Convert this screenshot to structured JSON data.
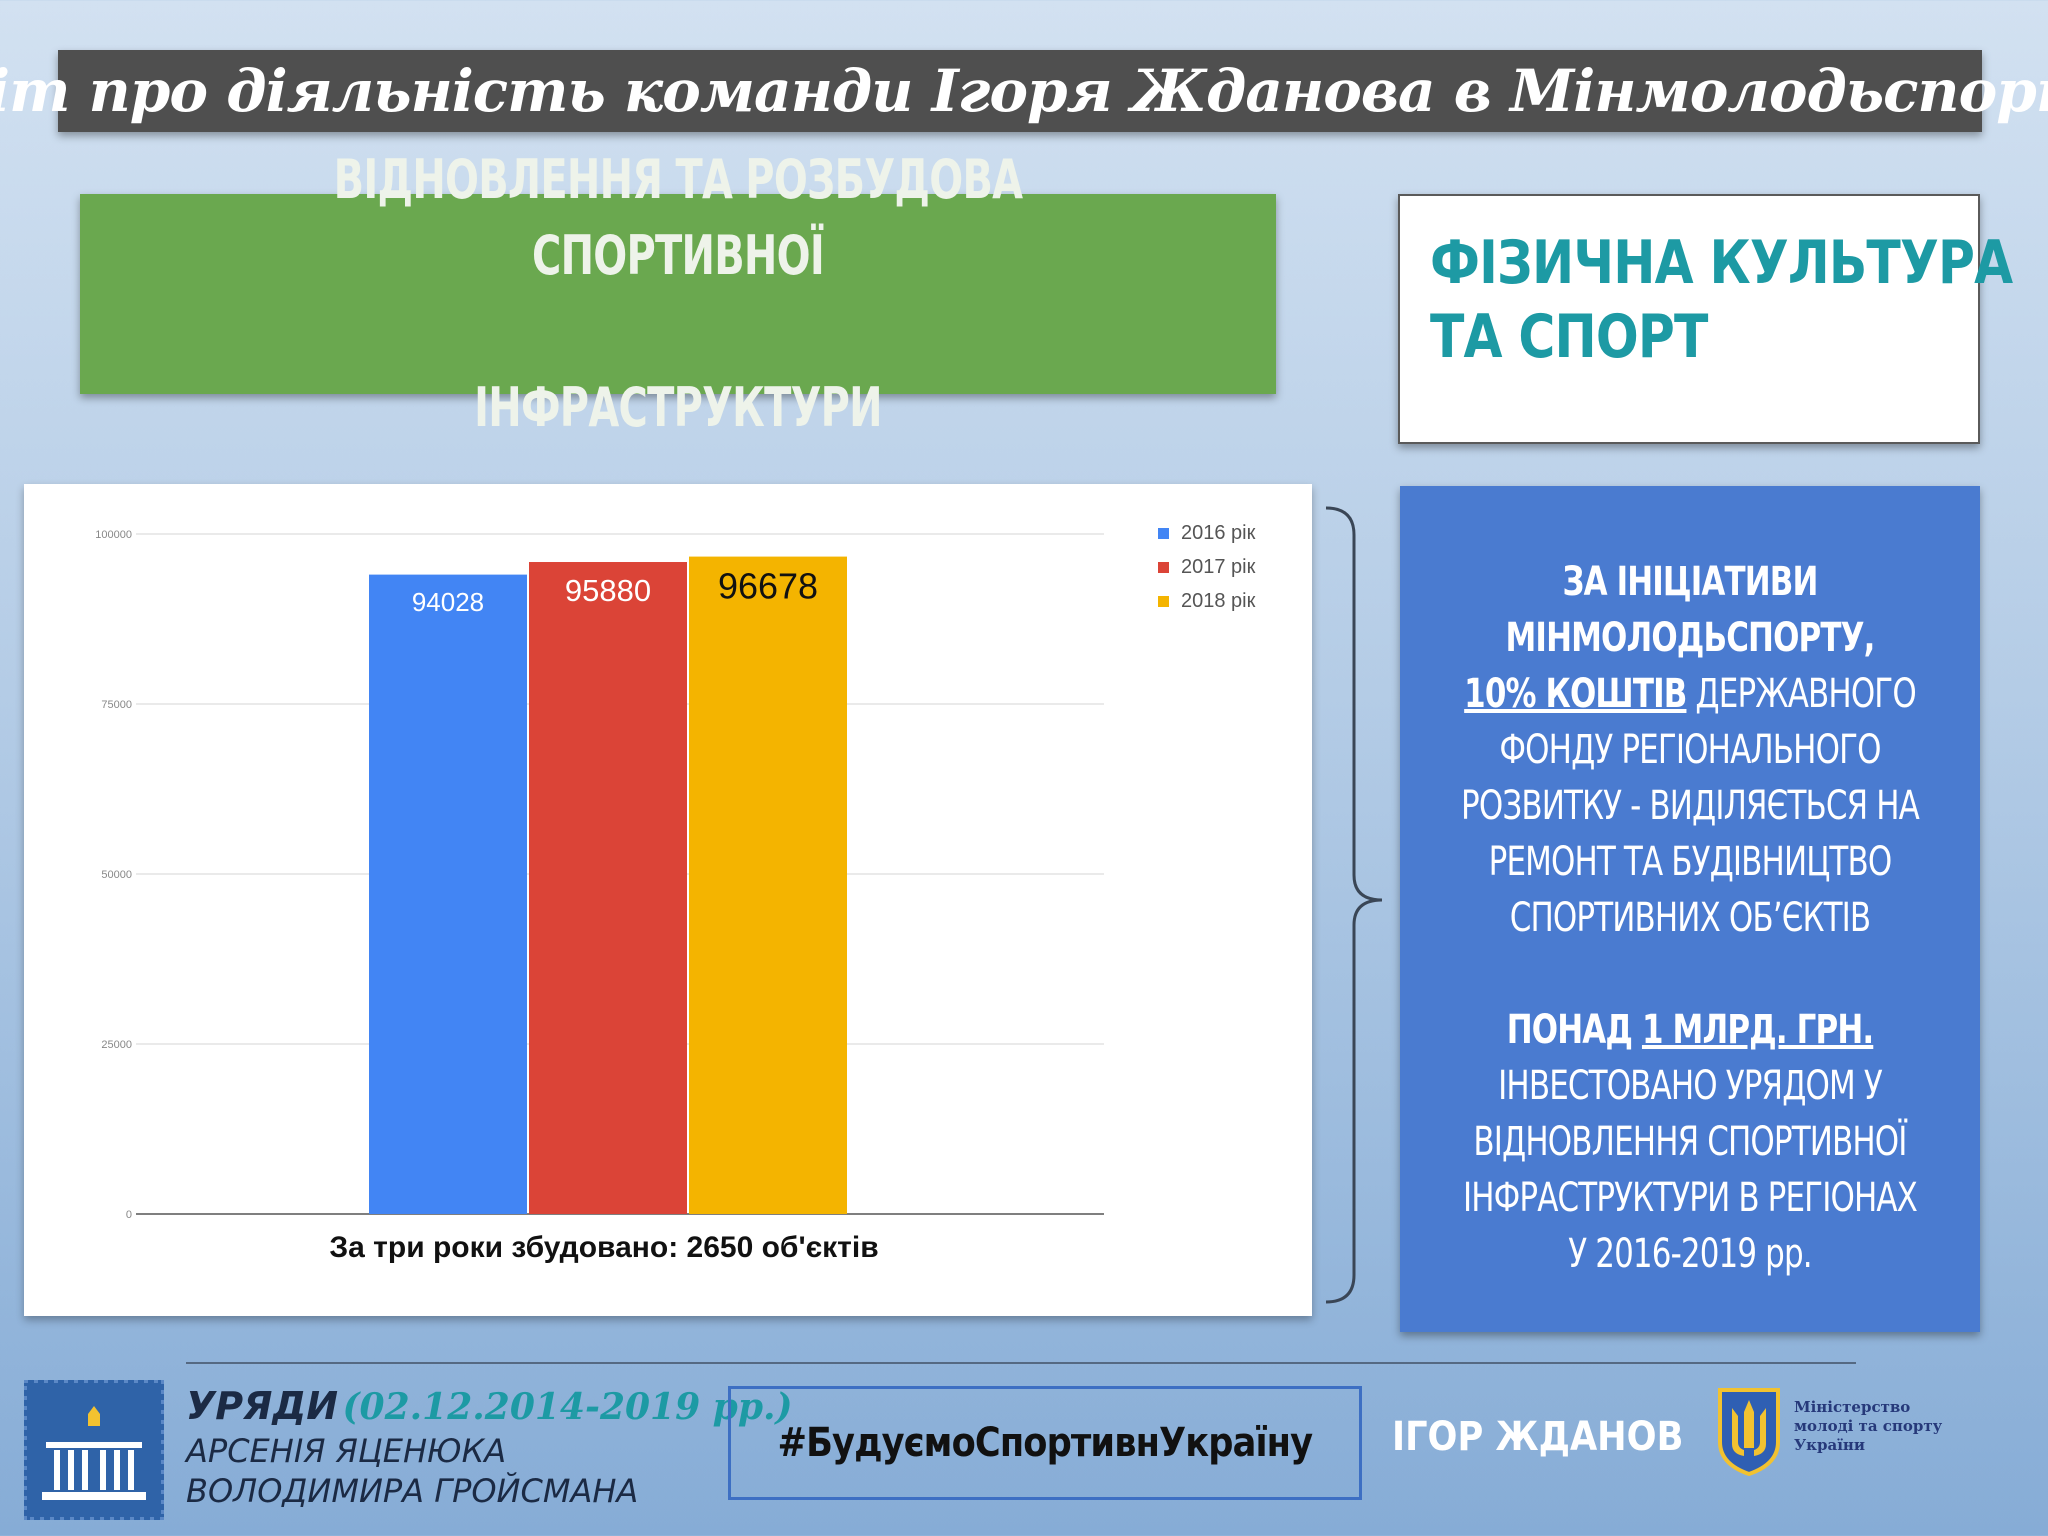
{
  "header": {
    "title": "Звіт про діяльність команди Ігоря Жданова в Мінмолодьспорту"
  },
  "section": {
    "heading_line1": "ВІДНОВЛЕННЯ ТА РОЗБУДОВА СПОРТИВНОЇ",
    "heading_line2": "ІНФРАСТРУКТУРИ",
    "category_line1": "ФІЗИЧНА КУЛЬТУРА",
    "category_line2": "ТА СПОРТ"
  },
  "chart_data": {
    "type": "bar",
    "categories": [
      ""
    ],
    "series": [
      {
        "name": "2016 рік",
        "values": [
          94028
        ],
        "color": "#4285f4",
        "label_color": "#ffffff"
      },
      {
        "name": "2017 рік",
        "values": [
          95880
        ],
        "color": "#db4437",
        "label_color": "#ffffff"
      },
      {
        "name": "2018 рік",
        "values": [
          96678
        ],
        "color": "#f4b400",
        "label_color": "#111111"
      }
    ],
    "data_labels": [
      "94028",
      "95880",
      "96678"
    ],
    "yticks": [
      "0",
      "25000",
      "50000",
      "75000",
      "100000"
    ],
    "ylim": [
      0,
      100000
    ],
    "caption": "За три роки збудовано: 2650 об'єктів",
    "legend_position": "top-right",
    "grid": true
  },
  "info": {
    "p1_line1": "ЗА ІНІЦІАТИВИ",
    "p1_line2": "МІНМОЛОДЬСПОРТУ,",
    "p1_line3_u": "10% КОШТІВ",
    "p1_line3_rest": " ДЕРЖАВНОГО",
    "p1_line4": "ФОНДУ РЕГІОНАЛЬНОГО",
    "p1_line5": "РОЗВИТКУ - ВИДІЛЯЄТЬСЯ НА",
    "p1_line6": "РЕМОНТ ТА БУДІВНИЦТВО",
    "p1_line7": "СПОРТИВНИХ ОБ’ЄКТІВ",
    "p2_line1_a": "ПОНАД ",
    "p2_line1_u": "1 МЛРД. ГРН.",
    "p2_line2": "ІНВЕСТОВАНО УРЯДОМ У",
    "p2_line3": "ВІДНОВЛЕННЯ СПОРТИВНОЇ",
    "p2_line4": "ІНФРАСТРУКТУРИ В РЕГІОНАХ",
    "p2_line5": "У 2016-2019 рр."
  },
  "footer": {
    "gov_title": "УРЯДИ",
    "gov_period": "(02.12.2014-2019 рр.)",
    "gov_name1": "АРСЕНІЯ ЯЦЕНЮКА",
    "gov_name2": "ВОЛОДИМИРА ГРОЙСМАНА",
    "hashtag": "#БудуємоСпортивнУкраїну",
    "person": "ІГОР ЖДАНОВ",
    "ministry_line1": "Міністерство",
    "ministry_line2": "молоді та спорту",
    "ministry_line3": "України",
    "colors": {
      "ministry_blue": "#26397a",
      "trident_gold": "#f2c230",
      "emblem_blue": "#2f63a8"
    }
  }
}
